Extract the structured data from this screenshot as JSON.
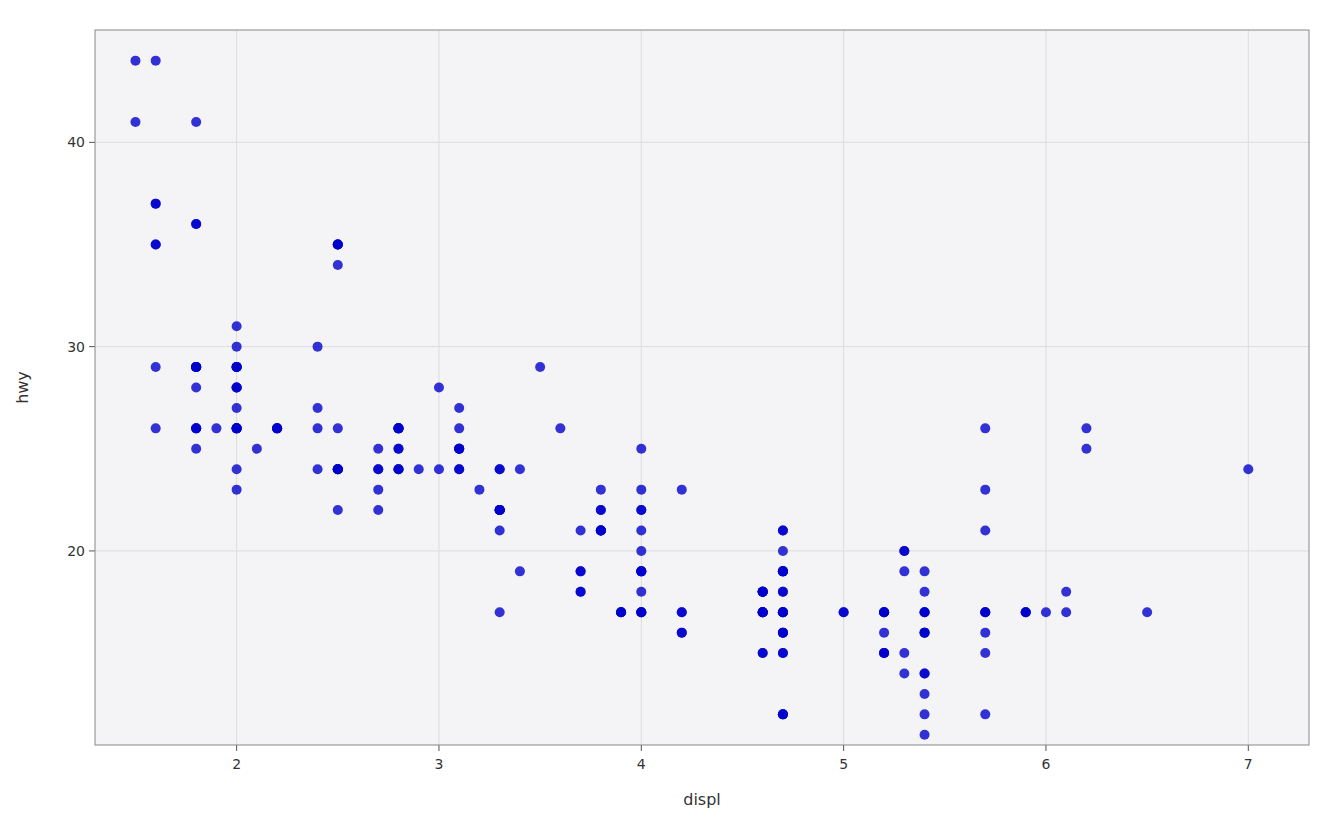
{
  "chart_data": {
    "type": "scatter",
    "xlabel": "displ",
    "ylabel": "hwy",
    "color": "#0000CD",
    "x": [
      1.8,
      1.8,
      2.0,
      2.0,
      2.8,
      2.8,
      3.1,
      1.8,
      1.8,
      2.0,
      2.0,
      2.8,
      2.8,
      3.1,
      3.1,
      2.8,
      3.1,
      4.2,
      5.3,
      5.3,
      5.3,
      5.7,
      6.0,
      5.7,
      5.7,
      6.2,
      6.2,
      7.0,
      5.3,
      5.3,
      5.7,
      6.5,
      2.4,
      2.4,
      3.1,
      3.5,
      3.6,
      2.4,
      3.0,
      3.3,
      3.3,
      3.3,
      3.3,
      3.3,
      3.8,
      3.8,
      3.8,
      4.0,
      3.7,
      3.7,
      3.9,
      3.9,
      4.7,
      4.7,
      4.7,
      5.2,
      5.2,
      4.7,
      4.7,
      4.7,
      4.7,
      4.7,
      4.7,
      5.2,
      5.2,
      5.7,
      5.9,
      4.7,
      4.7,
      4.7,
      4.7,
      4.7,
      4.7,
      5.2,
      5.2,
      5.7,
      5.9,
      4.6,
      5.4,
      5.4,
      4.0,
      4.0,
      4.0,
      4.0,
      4.6,
      5.0,
      4.2,
      4.2,
      4.6,
      4.6,
      4.6,
      5.4,
      3.8,
      3.8,
      4.0,
      4.0,
      4.6,
      4.6,
      4.6,
      4.6,
      5.4,
      1.6,
      1.6,
      1.6,
      1.6,
      1.6,
      1.8,
      1.8,
      1.8,
      2.0,
      2.4,
      1.8,
      1.8,
      2.0,
      2.0,
      2.8,
      2.8,
      3.1,
      2.0,
      2.0,
      2.0,
      2.0,
      2.0,
      2.0,
      2.7,
      2.7,
      2.7,
      3.0,
      3.7,
      4.0,
      4.7,
      4.7,
      4.7,
      5.7,
      6.1,
      4.0,
      2.5,
      2.5,
      2.5,
      2.5,
      2.5,
      2.1,
      2.2,
      2.2,
      2.2,
      2.2,
      2.5,
      2.5,
      2.5,
      2.5,
      2.5,
      2.5,
      2.7,
      2.7,
      3.4,
      3.4,
      4.0,
      4.7,
      1.5,
      1.5,
      1.6,
      1.6,
      1.8,
      1.8,
      1.8,
      2.0,
      2.0,
      2.8,
      1.9,
      2.0,
      2.5,
      2.9,
      3.1,
      3.2,
      3.3,
      3.3,
      3.3,
      3.3,
      3.3,
      3.8,
      3.8,
      3.8,
      4.0,
      3.7,
      3.7,
      3.9,
      3.9,
      4.7,
      4.7,
      4.7,
      5.2,
      5.2,
      5.7,
      5.9,
      4.6,
      5.4,
      5.4,
      4.0,
      4.0,
      4.0,
      4.0,
      4.6,
      5.0,
      4.2,
      4.2,
      4.6,
      4.6,
      4.6,
      5.4,
      5.4,
      5.4,
      5.4,
      5.4,
      5.4,
      5.4,
      1.8,
      1.8,
      2.0,
      2.0,
      2.8,
      2.8,
      3.1,
      4.7,
      5.7,
      6.1
    ],
    "values": [
      29,
      29,
      31,
      30,
      26,
      26,
      27,
      26,
      25,
      28,
      27,
      25,
      25,
      25,
      25,
      24,
      25,
      23,
      20,
      15,
      20,
      17,
      17,
      26,
      23,
      26,
      25,
      24,
      19,
      14,
      15,
      17,
      27,
      30,
      26,
      29,
      26,
      24,
      24,
      22,
      22,
      24,
      24,
      17,
      22,
      21,
      23,
      23,
      19,
      18,
      17,
      17,
      19,
      19,
      12,
      17,
      15,
      17,
      17,
      12,
      17,
      16,
      18,
      15,
      16,
      12,
      17,
      17,
      17,
      16,
      12,
      15,
      16,
      17,
      15,
      17,
      17,
      18,
      17,
      19,
      17,
      19,
      19,
      17,
      17,
      17,
      16,
      17,
      15,
      17,
      17,
      16,
      21,
      21,
      22,
      18,
      18,
      18,
      18,
      18,
      17,
      35,
      35,
      37,
      37,
      44,
      41,
      36,
      36,
      29,
      26,
      29,
      26,
      26,
      26,
      24,
      26,
      24,
      29,
      29,
      23,
      24,
      29,
      26,
      23,
      24,
      25,
      28,
      21,
      25,
      21,
      20,
      21,
      21,
      18,
      21,
      35,
      35,
      34,
      35,
      35,
      25,
      26,
      26,
      26,
      26,
      22,
      24,
      24,
      24,
      24,
      24,
      24,
      22,
      24,
      19,
      20,
      19,
      44,
      41,
      29,
      26,
      28,
      29,
      29,
      29,
      28,
      26,
      26,
      28,
      26,
      24,
      25,
      23,
      22,
      22,
      22,
      21,
      22,
      21,
      21,
      22,
      22,
      19,
      18,
      17,
      17,
      18,
      19,
      19,
      17,
      17,
      17,
      17,
      18,
      16,
      18,
      17,
      19,
      19,
      17,
      17,
      17,
      16,
      17,
      15,
      17,
      17,
      16,
      17,
      14,
      11,
      14,
      13,
      12,
      29,
      26,
      26,
      26,
      24,
      26,
      24,
      15,
      16,
      17
    ],
    "xlim": [
      1.3,
      7.3
    ],
    "ylim": [
      10.5,
      45.5
    ],
    "xticks": [
      2,
      3,
      4,
      5,
      6,
      7
    ],
    "yticks": [
      20,
      30,
      40
    ],
    "grid": true
  }
}
